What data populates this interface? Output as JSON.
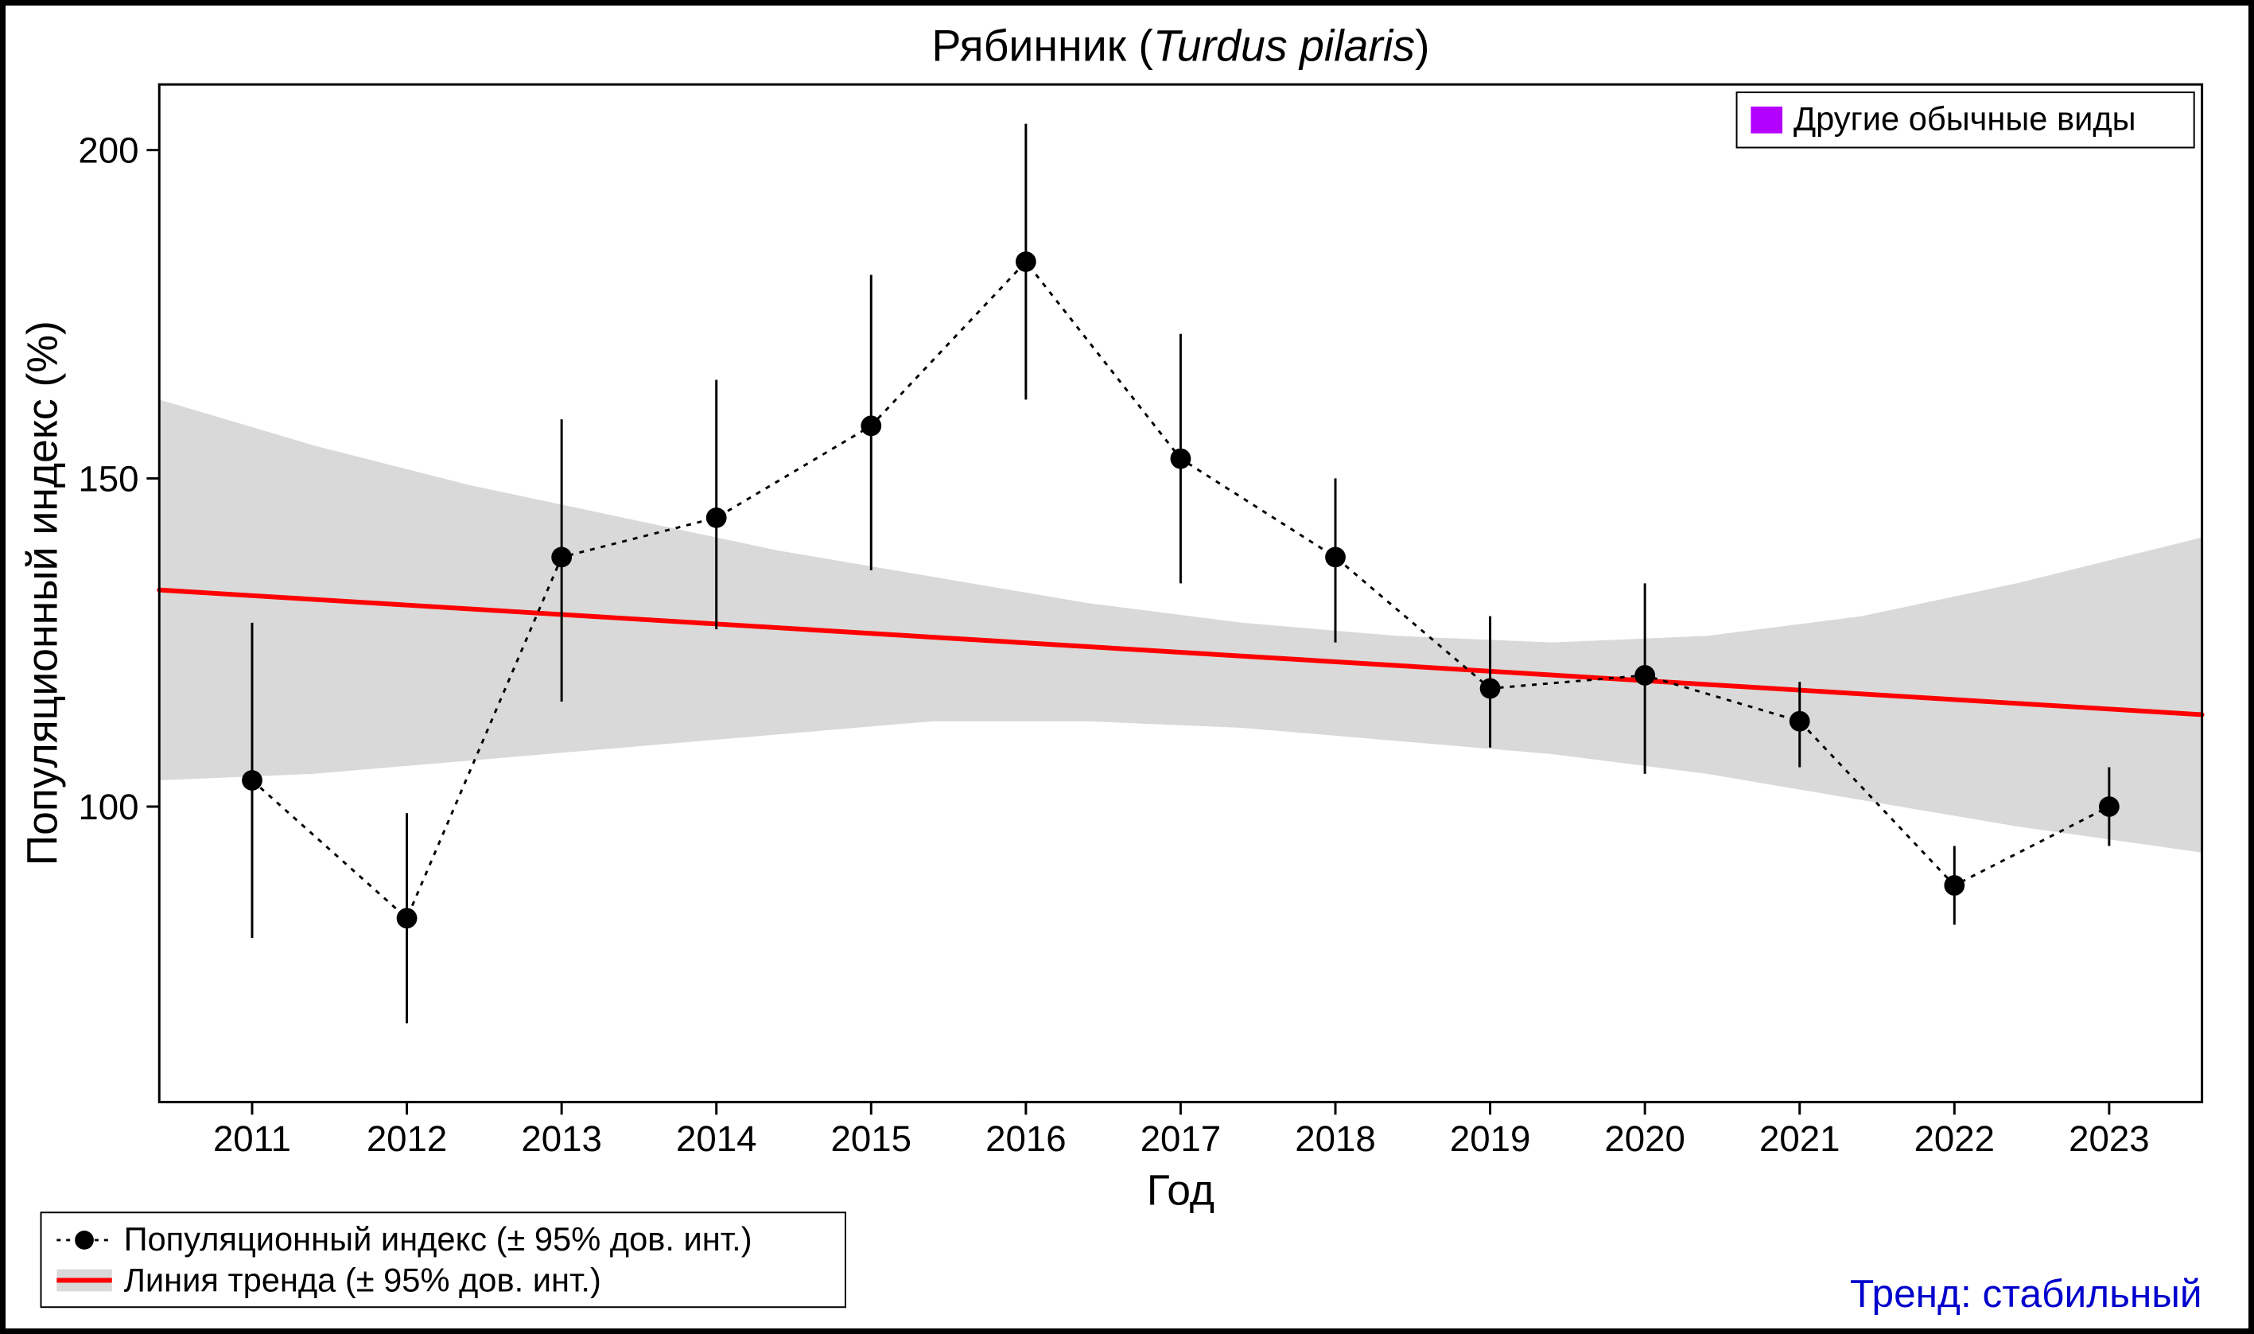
{
  "title_prefix": "Рябинник (",
  "title_italic": "Turdus pilaris",
  "title_suffix": ")",
  "x_label": "Год",
  "y_label": "Популяционный индекс (%)",
  "trend_label_prefix": "Тренд: ",
  "trend_label_value": "стабильный",
  "legend_top_right_text": "Другие обычные виды",
  "legend_bottom_line1": "Популяционный индекс (± 95% дов. инт.)",
  "legend_bottom_line2": "Линия тренда (± 95% дов. инт.)",
  "chart": {
    "type": "errorbar-line-trend",
    "background_color": "#ffffff",
    "plot_border_color": "#000000",
    "plot_border_width": 3,
    "conf_band_fill": "#d9d9d9",
    "trend_line_color": "#ff0000",
    "trend_line_width": 6,
    "data_line_color": "#000000",
    "data_line_dash": "6,8",
    "data_line_width": 3,
    "marker_color": "#000000",
    "marker_radius": 13,
    "errorbar_width": 3,
    "tick_fontsize": 46,
    "axis_label_fontsize": 54,
    "title_fontsize": 56,
    "legend_fontsize": 42,
    "trend_text_color": "#0000cc",
    "legend_top_swatch_color": "#b300ff",
    "legend_border_color": "#000000",
    "legend_border_width": 2,
    "x_domain": [
      2010.4,
      2023.6
    ],
    "y_domain": [
      55,
      210
    ],
    "y_ticks": [
      100,
      150,
      200
    ],
    "years": [
      2011,
      2012,
      2013,
      2014,
      2015,
      2016,
      2017,
      2018,
      2019,
      2020,
      2021,
      2022,
      2023
    ],
    "values": [
      104,
      83,
      138,
      144,
      158,
      183,
      153,
      138,
      118,
      120,
      113,
      88,
      100
    ],
    "err_low": [
      80,
      67,
      116,
      127,
      136,
      162,
      134,
      125,
      109,
      105,
      106,
      82,
      94
    ],
    "err_high": [
      128,
      99,
      159,
      165,
      181,
      204,
      172,
      150,
      129,
      134,
      119,
      94,
      106
    ],
    "trend_x": [
      2010.4,
      2023.6
    ],
    "trend_y": [
      133,
      114
    ],
    "band_top": [
      162,
      155,
      149,
      144,
      139,
      135,
      131,
      128,
      126,
      125,
      126,
      129,
      134,
      141
    ],
    "band_bot": [
      104,
      105,
      107,
      109,
      111,
      113,
      113,
      112,
      110,
      108,
      105,
      101,
      97,
      93
    ],
    "band_x": [
      2010.4,
      2011.4,
      2012.4,
      2013.4,
      2014.4,
      2015.4,
      2016.4,
      2017.4,
      2018.4,
      2019.4,
      2020.4,
      2021.4,
      2022.4,
      2023.6
    ]
  }
}
